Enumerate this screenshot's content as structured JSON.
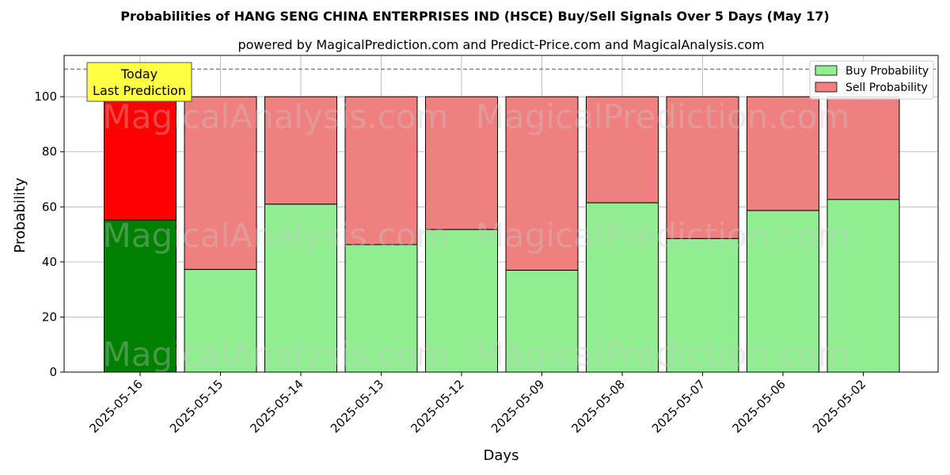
{
  "chart_data": {
    "type": "bar",
    "stacked": true,
    "title": "Probabilities of HANG SENG CHINA ENTERPRISES IND (HSCE) Buy/Sell Signals Over 5 Days (May 17)",
    "subtitle": "powered by MagicalPrediction.com and Predict-Price.com and MagicalAnalysis.com",
    "xlabel": "Days",
    "ylabel": "Probability",
    "ylim": [
      0,
      115
    ],
    "yticks": [
      0,
      20,
      40,
      60,
      80,
      100
    ],
    "reference_line": 110,
    "grid": true,
    "legend_position": "top-right",
    "categories": [
      "2025-05-16",
      "2025-05-15",
      "2025-05-14",
      "2025-05-13",
      "2025-05-12",
      "2025-05-09",
      "2025-05-08",
      "2025-05-07",
      "2025-05-06",
      "2025-05-02"
    ],
    "series": [
      {
        "name": "Buy Probability",
        "values": [
          55.2,
          37.3,
          61.0,
          46.3,
          51.8,
          37.0,
          61.5,
          48.5,
          58.7,
          62.7
        ]
      },
      {
        "name": "Sell Probability",
        "values": [
          44.8,
          62.7,
          39.0,
          53.7,
          48.2,
          63.0,
          38.5,
          51.5,
          41.3,
          37.3
        ]
      }
    ],
    "colors": {
      "buy": "#90ee90",
      "sell": "#f08080",
      "buy_highlight": "#008000",
      "sell_highlight": "#ff0000",
      "annotation_bg": "#ffff44"
    },
    "highlight_index": 0,
    "annotation": {
      "line1": "Today",
      "line2": "Last Prediction"
    },
    "watermarks": [
      "MagicalAnalysis.com",
      "MagicalPrediction.com"
    ]
  }
}
